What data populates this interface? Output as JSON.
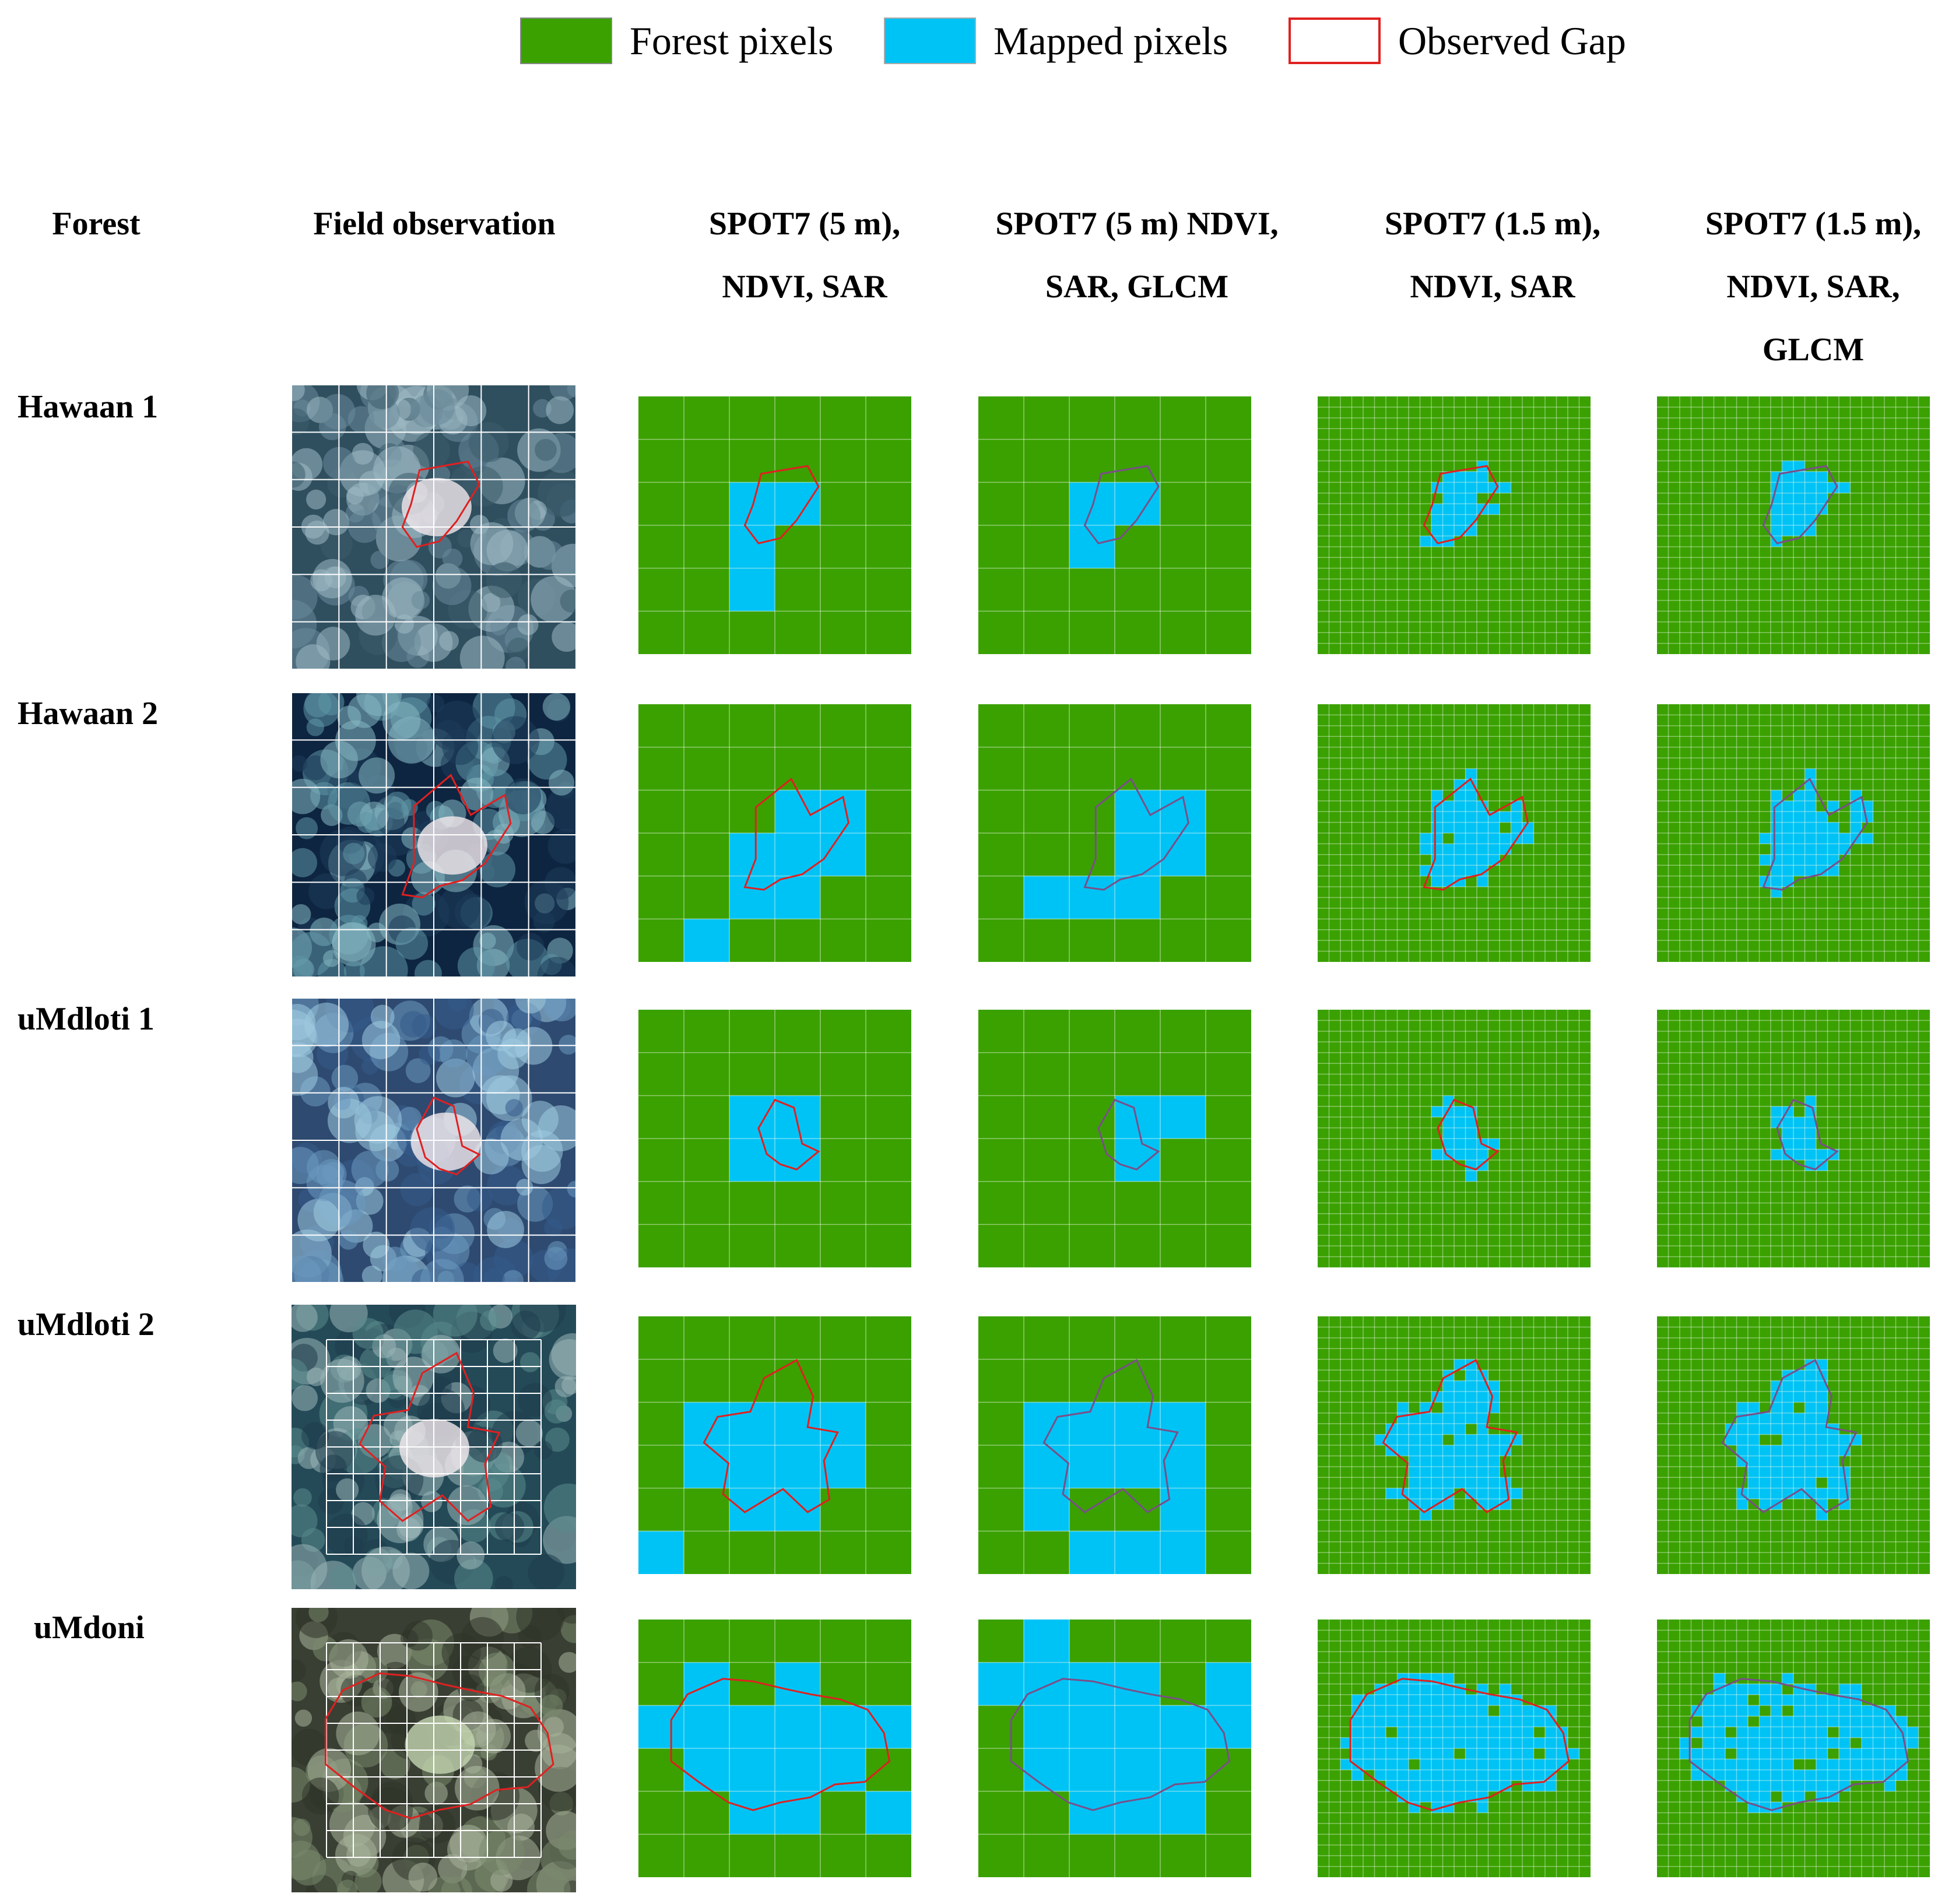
{
  "legend": {
    "forest": {
      "label": "Forest pixels",
      "color": "#3aa100"
    },
    "mapped": {
      "label": "Mapped pixels",
      "color": "#00c3f5"
    },
    "gap": {
      "label": "Observed Gap",
      "color": "#e02020"
    }
  },
  "headers": {
    "forest": "Forest",
    "field": "Field observation",
    "c1": [
      "SPOT7 (5 m),",
      "NDVI, SAR"
    ],
    "c2": [
      "SPOT7 (5 m) NDVI,",
      "SAR, GLCM"
    ],
    "c3": [
      "SPOT7 (1.5 m),",
      "NDVI, SAR"
    ],
    "c4": [
      "SPOT7 (1.5 m),",
      "NDVI, SAR,",
      "GLCM"
    ]
  },
  "rows": [
    {
      "name": "Hawaan 1"
    },
    {
      "name": "Hawaan 2"
    },
    {
      "name": "uMdloti 1"
    },
    {
      "name": "uMdloti 2"
    },
    {
      "name": "uMdoni"
    }
  ]
}
